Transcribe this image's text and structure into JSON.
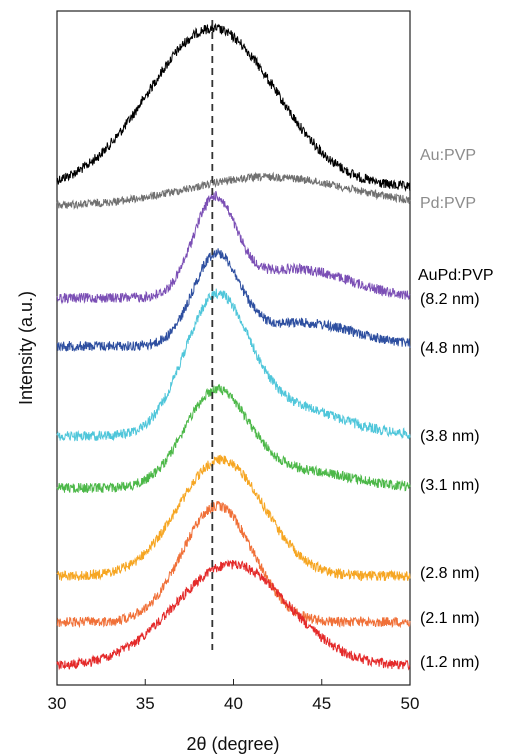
{
  "chart_data": {
    "type": "line",
    "xlabel": "2θ  (degree)",
    "ylabel": "Intensity (a.u.)",
    "xlim": [
      30,
      50
    ],
    "xticks": [
      30,
      35,
      40,
      45,
      50
    ],
    "y_ticks_shown": false,
    "grid": false,
    "reference_line": {
      "x": 38.8,
      "style": "dashed"
    },
    "group_label": {
      "text": "AuPd:PVP",
      "color": "#000000"
    },
    "series": [
      {
        "name": "Au:PVP",
        "label": "Au:PVP",
        "label_color": "#8c8c8c",
        "color": "#000000",
        "peak_center": 38.8,
        "peak_width": 3.6,
        "peak_height": 0.55,
        "peak_skew": 0.0,
        "baseline": 0.0,
        "offset": 0.0
      },
      {
        "name": "Pd:PVP",
        "label": "Pd:PVP",
        "label_color": "#8c8c8c",
        "color": "#707070",
        "peak_center": 42.0,
        "peak_width": 4.5,
        "peak_height": 0.1,
        "peak_skew": 0.0,
        "baseline": 0.0,
        "offset": 0.0
      },
      {
        "name": "8.2 nm",
        "label": "(8.2 nm)",
        "label_color": "#000000",
        "color": "#7b4fb5",
        "peak_center": 38.9,
        "peak_width": 1.2,
        "peak_height": 0.32,
        "peak_skew": 0.0,
        "shoulder_center": 43.5,
        "shoulder_width": 3.0,
        "shoulder_height": 0.1,
        "baseline": 0.0,
        "offset": 0.0
      },
      {
        "name": "4.8 nm",
        "label": "(4.8 nm)",
        "label_color": "#000000",
        "color": "#2e4fa0",
        "peak_center": 39.0,
        "peak_width": 1.3,
        "peak_height": 0.3,
        "peak_skew": 0.0,
        "shoulder_center": 43.8,
        "shoulder_width": 3.0,
        "shoulder_height": 0.08,
        "baseline": 0.0,
        "offset": 0.0
      },
      {
        "name": "3.8 nm",
        "label": "(3.8 nm)",
        "label_color": "#000000",
        "color": "#4fc6da",
        "peak_center": 39.0,
        "peak_width": 1.8,
        "peak_height": 0.45,
        "peak_skew": 0.0,
        "shoulder_center": 43.0,
        "shoulder_width": 3.0,
        "shoulder_height": 0.1,
        "baseline": 0.0,
        "offset": 0.0
      },
      {
        "name": "3.1 nm",
        "label": "(3.1 nm)",
        "label_color": "#000000",
        "color": "#4cb848",
        "peak_center": 39.0,
        "peak_width": 1.8,
        "peak_height": 0.32,
        "peak_skew": 0.0,
        "shoulder_center": 43.5,
        "shoulder_width": 3.0,
        "shoulder_height": 0.06,
        "baseline": 0.0,
        "offset": 0.0
      },
      {
        "name": "2.8 nm",
        "label": "(2.8 nm)",
        "label_color": "#000000",
        "color": "#f6a623",
        "peak_center": 39.3,
        "peak_width": 2.4,
        "peak_height": 0.4,
        "peak_skew": 0.0,
        "baseline": 0.0,
        "offset": 0.0
      },
      {
        "name": "2.1 nm",
        "label": "(2.1 nm)",
        "label_color": "#000000",
        "color": "#f07038",
        "peak_center": 39.1,
        "peak_width": 2.0,
        "peak_height": 0.4,
        "peak_skew": 0.0,
        "baseline": 0.0,
        "offset": 0.0
      },
      {
        "name": "1.2 nm",
        "label": "(1.2 nm)",
        "label_color": "#000000",
        "color": "#e42a2a",
        "peak_center": 39.9,
        "peak_width": 3.2,
        "peak_height": 0.35,
        "peak_skew": 0.0,
        "baseline": 0.0,
        "offset": 0.0
      }
    ]
  }
}
